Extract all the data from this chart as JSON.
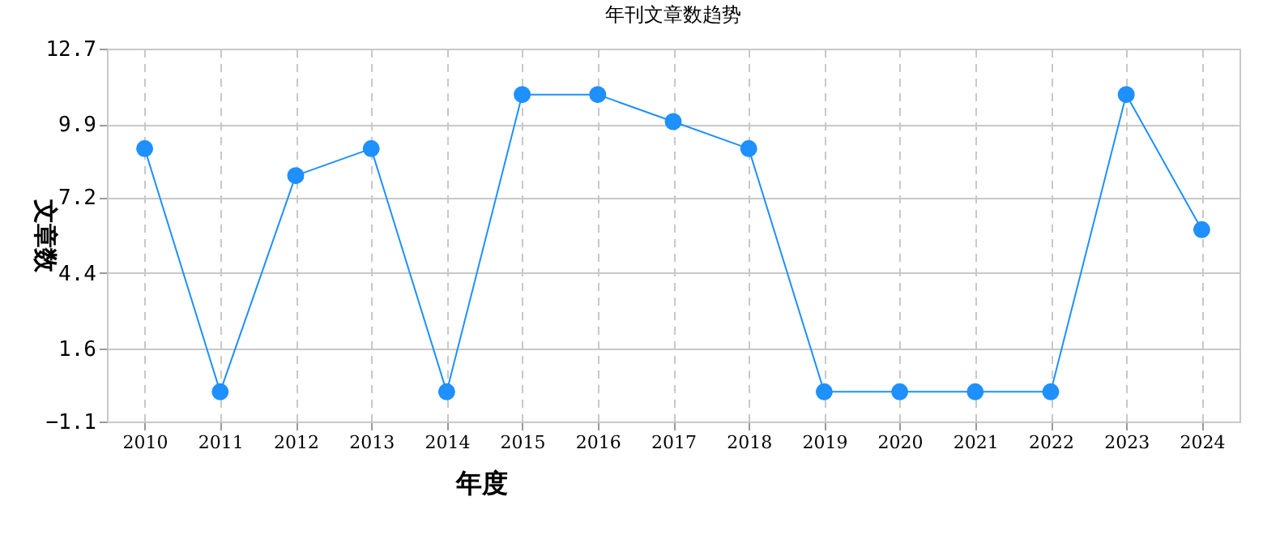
{
  "chart_data": {
    "type": "line",
    "title": "年刊文章数趋势",
    "xlabel": "年度",
    "ylabel": "文章数",
    "categories": [
      "2010",
      "2011",
      "2012",
      "2013",
      "2014",
      "2015",
      "2016",
      "2017",
      "2018",
      "2019",
      "2020",
      "2021",
      "2022",
      "2023",
      "2024"
    ],
    "series": [
      {
        "color": "#1e90ff",
        "values": [
          9,
          0,
          8,
          9,
          0,
          11,
          11,
          10,
          9,
          0,
          0,
          0,
          0,
          11,
          6
        ]
      }
    ],
    "ylim": [
      -1.1,
      12.7
    ],
    "yticks": [
      -1.1,
      1.6,
      4.4,
      7.2,
      9.9,
      12.7
    ],
    "grid": true,
    "marker": "circle",
    "line_style": "solid"
  }
}
